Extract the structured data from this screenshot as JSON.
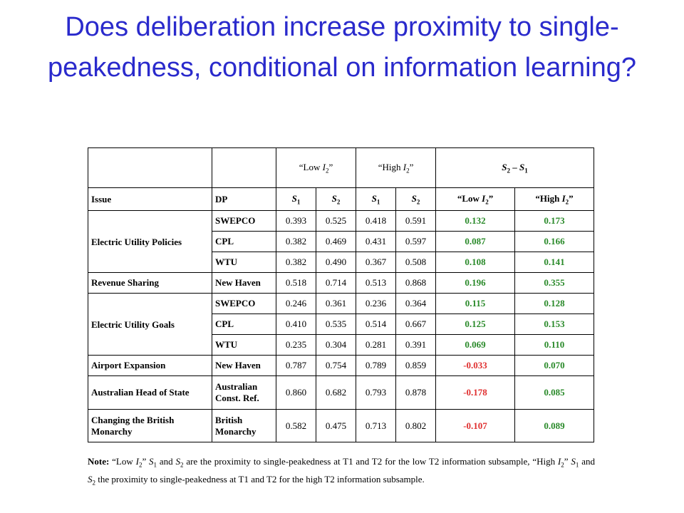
{
  "title": "Does deliberation increase proximity to single-peakedness, conditional on information learning?",
  "table": {
    "group_headers": {
      "low": "“Low I2”",
      "high": "“High I2”",
      "diff": "S2 – S1"
    },
    "col_headers": [
      "Issue",
      "DP",
      "S1",
      "S2",
      "S1",
      "S2",
      "“Low I2”",
      "“High I2”"
    ],
    "rows": [
      {
        "issue": "Electric Utility Policies",
        "dp": "SWEPCO",
        "low_s1": "0.393",
        "low_s2": "0.525",
        "high_s1": "0.418",
        "high_s2": "0.591",
        "diff_low": "0.132",
        "diff_high": "0.173"
      },
      {
        "issue": "",
        "dp": "CPL",
        "low_s1": "0.382",
        "low_s2": "0.469",
        "high_s1": "0.431",
        "high_s2": "0.597",
        "diff_low": "0.087",
        "diff_high": "0.166"
      },
      {
        "issue": "",
        "dp": "WTU",
        "low_s1": "0.382",
        "low_s2": "0.490",
        "high_s1": "0.367",
        "high_s2": "0.508",
        "diff_low": "0.108",
        "diff_high": "0.141"
      },
      {
        "issue": "Revenue Sharing",
        "dp": "New Haven",
        "low_s1": "0.518",
        "low_s2": "0.714",
        "high_s1": "0.513",
        "high_s2": "0.868",
        "diff_low": "0.196",
        "diff_high": "0.355"
      },
      {
        "issue": "Electric Utility Goals",
        "dp": "SWEPCO",
        "low_s1": "0.246",
        "low_s2": "0.361",
        "high_s1": "0.236",
        "high_s2": "0.364",
        "diff_low": "0.115",
        "diff_high": "0.128"
      },
      {
        "issue": "",
        "dp": "CPL",
        "low_s1": "0.410",
        "low_s2": "0.535",
        "high_s1": "0.514",
        "high_s2": "0.667",
        "diff_low": "0.125",
        "diff_high": "0.153"
      },
      {
        "issue": "",
        "dp": "WTU",
        "low_s1": "0.235",
        "low_s2": "0.304",
        "high_s1": "0.281",
        "high_s2": "0.391",
        "diff_low": "0.069",
        "diff_high": "0.110"
      },
      {
        "issue": "Airport Expansion",
        "dp": "New Haven",
        "low_s1": "0.787",
        "low_s2": "0.754",
        "high_s1": "0.789",
        "high_s2": "0.859",
        "diff_low": "-0.033",
        "diff_high": "0.070"
      },
      {
        "issue": "Australian Head of State",
        "dp": "Australian Const. Ref.",
        "low_s1": "0.860",
        "low_s2": "0.682",
        "high_s1": "0.793",
        "high_s2": "0.878",
        "diff_low": "-0.178",
        "diff_high": "0.085"
      },
      {
        "issue": "Changing the British Monarchy",
        "dp": "British Monarchy",
        "low_s1": "0.582",
        "low_s2": "0.475",
        "high_s1": "0.713",
        "high_s2": "0.802",
        "diff_low": "-0.107",
        "diff_high": "0.089"
      }
    ],
    "colors": {
      "positive": "#2a8a2a",
      "negative": "#e03030"
    }
  },
  "note": {
    "label": "Note:",
    "text": "“Low I2” S1 and S2 are the proximity to single-peakedness at T1 and T2 for the low T2 information subsample, “High I2” S1 and S2 the proximity to single-peakedness at T1 and T2 for the high T2 information subsample."
  }
}
